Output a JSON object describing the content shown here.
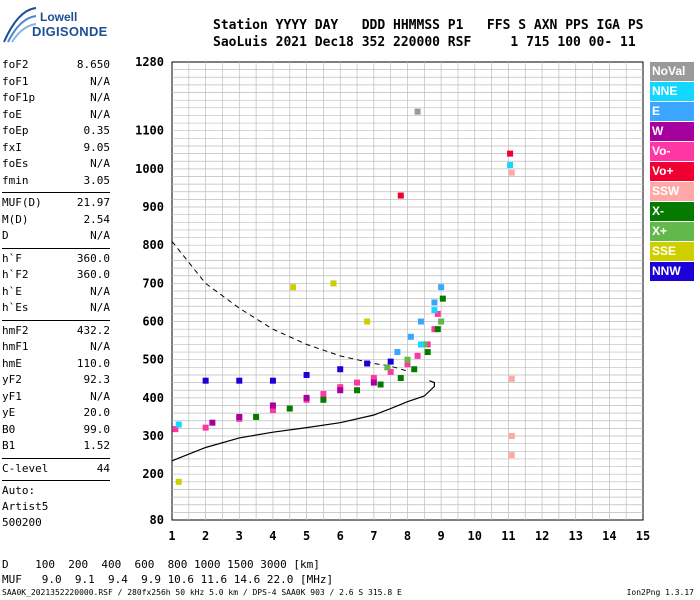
{
  "logo": {
    "line1": "Lowell",
    "line2": "DIGISONDE"
  },
  "header": {
    "line1": "Station YYYY DAY   DDD HHMMSS P1   FFS S AXN PPS IGA PS",
    "line2": "SaoLuis 2021 Dec18 352 220000 RSF     1 715 100 00- 11"
  },
  "params": [
    {
      "group": [
        [
          "foF2",
          "8.650"
        ],
        [
          "foF1",
          "N/A"
        ],
        [
          "foF1p",
          "N/A"
        ],
        [
          "foE",
          "N/A"
        ],
        [
          "foEp",
          "0.35"
        ],
        [
          "fxI",
          "9.05"
        ],
        [
          "foEs",
          "N/A"
        ],
        [
          "fmin",
          "3.05"
        ]
      ]
    },
    {
      "group": [
        [
          "MUF(D)",
          "21.97"
        ],
        [
          "M(D)",
          "2.54"
        ],
        [
          "D",
          "N/A"
        ]
      ]
    },
    {
      "group": [
        [
          "h`F",
          "360.0"
        ],
        [
          "h`F2",
          "360.0"
        ],
        [
          "h`E",
          "N/A"
        ],
        [
          "h`Es",
          "N/A"
        ]
      ]
    },
    {
      "group": [
        [
          "hmF2",
          "432.2"
        ],
        [
          "hmF1",
          "N/A"
        ],
        [
          "hmE",
          "110.0"
        ],
        [
          "yF2",
          "92.3"
        ],
        [
          "yF1",
          "N/A"
        ],
        [
          "yE",
          "20.0"
        ],
        [
          "B0",
          "99.0"
        ],
        [
          "B1",
          "1.52"
        ]
      ]
    },
    {
      "group": [
        [
          "C-level",
          "44"
        ]
      ]
    }
  ],
  "auto_info": [
    "Auto:",
    "Artist5",
    "500200"
  ],
  "legend": [
    {
      "label": "NoVal",
      "color": "#9a9a9a"
    },
    {
      "label": "NNE",
      "color": "#12d8ff"
    },
    {
      "label": "E",
      "color": "#3aa6ff"
    },
    {
      "label": "W",
      "color": "#a6009e"
    },
    {
      "label": "Vo-",
      "color": "#ff37a4"
    },
    {
      "label": "Vo+",
      "color": "#ef0031"
    },
    {
      "label": "SSW",
      "color": "#ffa8a8"
    },
    {
      "label": "X-",
      "color": "#057a00"
    },
    {
      "label": "X+",
      "color": "#62b84a"
    },
    {
      "label": "SSE",
      "color": "#cfcf00"
    },
    {
      "label": "NNW",
      "color": "#1c00d8"
    }
  ],
  "bottom_table": {
    "row1": "D    100  200  400  600  800 1000 1500 3000 [km]",
    "row2": "MUF   9.0  9.1  9.4  9.9 10.6 11.6 14.6 22.0 [MHz]"
  },
  "footer": "SAA0K_2021352220000.RSF / 280fx256h 50 kHz 5.0 km / DPS-4 SAA0K 903 / 2.6 S 315.8 E",
  "version": "Ion2Png 1.3.17",
  "chart_data": {
    "type": "scatter",
    "x_range": [
      1,
      15
    ],
    "y_range": [
      80,
      1280
    ],
    "x_ticks": [
      1,
      2,
      3,
      4,
      5,
      6,
      7,
      8,
      9,
      10,
      11,
      12,
      13,
      14,
      15
    ],
    "y_ticks": [
      80,
      200,
      300,
      400,
      500,
      600,
      700,
      800,
      900,
      1000,
      1100,
      1280
    ],
    "grid": true,
    "series": [
      {
        "name": "Vo-",
        "color": "#ff37a4",
        "points": [
          [
            1.1,
            318
          ],
          [
            2.0,
            322
          ],
          [
            3,
            345
          ],
          [
            4,
            368
          ],
          [
            5,
            395
          ],
          [
            5.5,
            410
          ],
          [
            6,
            428
          ],
          [
            6.5,
            440
          ],
          [
            7,
            452
          ],
          [
            7.5,
            468
          ],
          [
            8,
            488
          ],
          [
            8.3,
            510
          ],
          [
            8.6,
            540
          ],
          [
            8.8,
            580
          ],
          [
            8.9,
            620
          ]
        ]
      },
      {
        "name": "X-",
        "color": "#057a00",
        "points": [
          [
            3.5,
            350
          ],
          [
            4.5,
            372
          ],
          [
            5.5,
            395
          ],
          [
            6.5,
            420
          ],
          [
            7.2,
            435
          ],
          [
            7.8,
            452
          ],
          [
            8.2,
            475
          ],
          [
            8.6,
            520
          ],
          [
            8.9,
            580
          ],
          [
            9.05,
            660
          ]
        ]
      },
      {
        "name": "NNW",
        "color": "#1c00d8",
        "points": [
          [
            2.0,
            445
          ],
          [
            3,
            445
          ],
          [
            4,
            445
          ],
          [
            5,
            460
          ],
          [
            6,
            475
          ],
          [
            6.8,
            490
          ],
          [
            7.5,
            495
          ]
        ]
      },
      {
        "name": "W",
        "color": "#a6009e",
        "points": [
          [
            2.2,
            335
          ],
          [
            3,
            350
          ],
          [
            4,
            380
          ],
          [
            5,
            400
          ],
          [
            6,
            420
          ],
          [
            7,
            440
          ]
        ]
      },
      {
        "name": "E",
        "color": "#3aa6ff",
        "points": [
          [
            7.7,
            520
          ],
          [
            8.1,
            560
          ],
          [
            8.4,
            600
          ],
          [
            8.8,
            650
          ],
          [
            9.0,
            690
          ]
        ]
      },
      {
        "name": "X+",
        "color": "#62b84a",
        "points": [
          [
            7.4,
            480
          ],
          [
            8.0,
            500
          ],
          [
            8.5,
            540
          ],
          [
            9.0,
            600
          ]
        ]
      },
      {
        "name": "NNE",
        "color": "#12d8ff",
        "points": [
          [
            1.2,
            330
          ],
          [
            8.4,
            540
          ],
          [
            8.8,
            630
          ],
          [
            11.05,
            1010
          ]
        ]
      },
      {
        "name": "SSE",
        "color": "#cfcf00",
        "points": [
          [
            1.2,
            180
          ],
          [
            4.6,
            690
          ],
          [
            5.8,
            700
          ],
          [
            6.8,
            600
          ]
        ]
      },
      {
        "name": "SSW",
        "color": "#ffa8a8",
        "points": [
          [
            11.1,
            250
          ],
          [
            11.1,
            300
          ],
          [
            11.1,
            450
          ],
          [
            11.1,
            990
          ]
        ]
      },
      {
        "name": "Vo+",
        "color": "#ef0031",
        "points": [
          [
            7.8,
            930
          ],
          [
            11.05,
            1040
          ]
        ]
      },
      {
        "name": "NoVal",
        "color": "#9a9a9a",
        "points": [
          [
            8.3,
            1150
          ]
        ]
      }
    ],
    "ordinary_profile": [
      [
        1.0,
        235
      ],
      [
        2,
        270
      ],
      [
        3,
        295
      ],
      [
        4,
        310
      ],
      [
        5,
        322
      ],
      [
        6,
        335
      ],
      [
        7,
        355
      ],
      [
        7.5,
        372
      ],
      [
        8,
        390
      ],
      [
        8.5,
        405
      ],
      [
        8.8,
        430
      ],
      [
        8.8,
        440
      ],
      [
        8.65,
        445
      ]
    ],
    "dashed_profile": [
      [
        1.0,
        810
      ],
      [
        1.5,
        755
      ],
      [
        2,
        700
      ],
      [
        3,
        635
      ],
      [
        4,
        580
      ],
      [
        5,
        540
      ],
      [
        6,
        510
      ],
      [
        7,
        490
      ],
      [
        7.5,
        483
      ],
      [
        8,
        470
      ]
    ]
  }
}
